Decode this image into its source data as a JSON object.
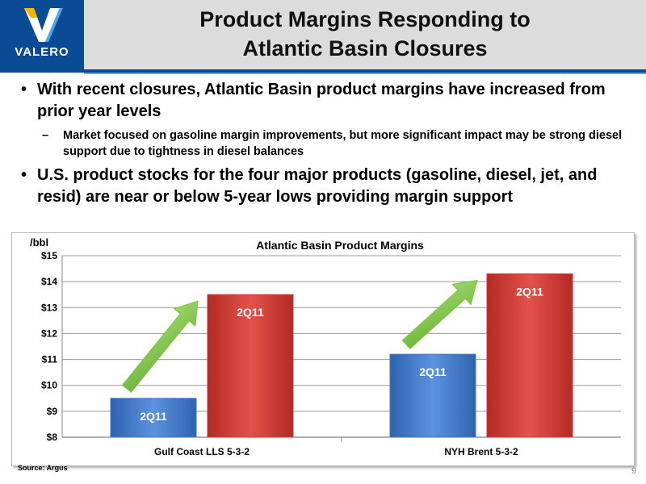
{
  "logo": {
    "text": "VALERO",
    "icon": "valero-v-logo-icon",
    "color": "#0b4a94"
  },
  "title": {
    "line1": "Product Margins Responding to",
    "line2": "Atlantic Basin Closures"
  },
  "bullets": [
    {
      "level": 1,
      "text": "With recent closures, Atlantic Basin product margins have increased from prior year levels"
    },
    {
      "level": 2,
      "text": "Market focused on gasoline margin improvements, but more significant impact may be strong diesel support due to tightness in diesel balances"
    },
    {
      "level": 1,
      "text": "U.S. product stocks for the four major products (gasoline, diesel, jet, and resid) are near or below 5-year lows providing margin support"
    }
  ],
  "chart_data": {
    "type": "bar",
    "title": "Atlantic Basin Product Margins",
    "ylabel": "/bbl",
    "ylim": [
      8,
      15
    ],
    "yticks": [
      "$8",
      "$9",
      "$10",
      "$11",
      "$12",
      "$13",
      "$14",
      "$15"
    ],
    "grid": true,
    "categories": [
      "Gulf Coast LLS 5-3-2",
      "NYH Brent 5-3-2"
    ],
    "series": [
      {
        "color": "#3f78c8",
        "values": [
          9.5,
          11.2
        ],
        "labels": [
          "2Q11",
          "2Q11"
        ]
      },
      {
        "color": "#d23a33",
        "values": [
          13.5,
          14.3
        ],
        "labels": [
          "2Q11",
          "2Q11"
        ]
      }
    ],
    "annotations": {
      "arrow_color": "#7cc242",
      "arrow_icon": "green-up-arrow-icon"
    }
  },
  "source": "Source:  Argus",
  "page_number": "9"
}
